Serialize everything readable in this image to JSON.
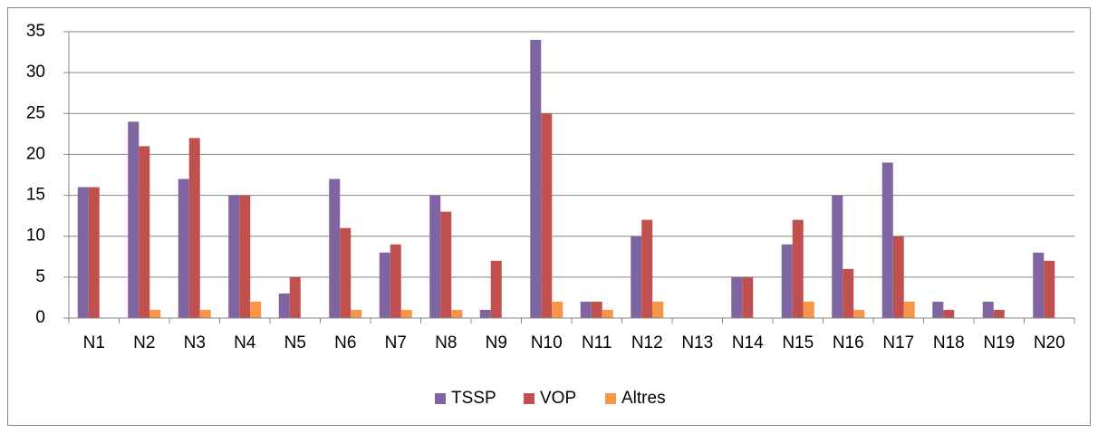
{
  "chart_data": {
    "type": "bar",
    "categories": [
      "N1",
      "N2",
      "N3",
      "N4",
      "N5",
      "N6",
      "N7",
      "N8",
      "N9",
      "N10",
      "N11",
      "N12",
      "N13",
      "N14",
      "N15",
      "N16",
      "N17",
      "N18",
      "N19",
      "N20"
    ],
    "series": [
      {
        "name": "TSSP",
        "color": "#8064a2",
        "values": [
          16,
          24,
          17,
          15,
          3,
          17,
          8,
          15,
          1,
          34,
          2,
          10,
          0,
          5,
          9,
          15,
          19,
          2,
          2,
          8
        ]
      },
      {
        "name": "VOP",
        "color": "#c0504d",
        "values": [
          16,
          21,
          22,
          15,
          5,
          11,
          9,
          13,
          7,
          25,
          2,
          12,
          0,
          5,
          12,
          6,
          10,
          1,
          1,
          7
        ]
      },
      {
        "name": "Altres",
        "color": "#f79646",
        "values": [
          0,
          1,
          1,
          2,
          0,
          1,
          1,
          1,
          0,
          2,
          1,
          2,
          0,
          0,
          2,
          1,
          2,
          0,
          0,
          0
        ]
      }
    ],
    "ylim": [
      0,
      35
    ],
    "yticks": [
      0,
      5,
      10,
      15,
      20,
      25,
      30,
      35
    ],
    "grid": true,
    "legend": "bottom"
  }
}
